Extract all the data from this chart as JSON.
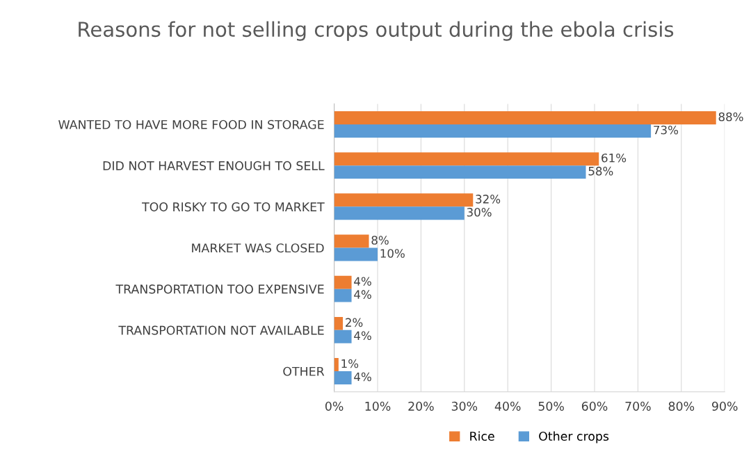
{
  "chart_data": {
    "type": "bar",
    "orientation": "horizontal",
    "title": "Reasons for not selling crops output during the ebola crisis",
    "categories": [
      "WANTED TO HAVE MORE FOOD IN STORAGE",
      "DID NOT HARVEST ENOUGH TO SELL",
      "TOO RISKY TO GO TO MARKET",
      "MARKET WAS CLOSED",
      "TRANSPORTATION TOO EXPENSIVE",
      "TRANSPORTATION NOT AVAILABLE",
      "OTHER"
    ],
    "series": [
      {
        "name": "Rice",
        "color": "#ed7d31",
        "values": [
          88,
          61,
          32,
          8,
          4,
          2,
          1
        ],
        "value_labels": [
          "88%",
          "61%",
          "32%",
          "8%",
          "4%",
          "2%",
          "1%"
        ]
      },
      {
        "name": "Other crops",
        "color": "#5b9bd5",
        "values": [
          73,
          58,
          30,
          10,
          4,
          4,
          4
        ],
        "value_labels": [
          "73%",
          "58%",
          "30%",
          "10%",
          "4%",
          "4%",
          "4%"
        ]
      }
    ],
    "xlim": [
      0,
      90
    ],
    "xticks": [
      {
        "value": 0,
        "label": "0%"
      },
      {
        "value": 10,
        "label": "10%"
      },
      {
        "value": 20,
        "label": "20%"
      },
      {
        "value": 30,
        "label": "30%"
      },
      {
        "value": 40,
        "label": "40%"
      },
      {
        "value": 50,
        "label": "50%"
      },
      {
        "value": 60,
        "label": "60%"
      },
      {
        "value": 70,
        "label": "70%"
      },
      {
        "value": 80,
        "label": "80%"
      },
      {
        "value": 90,
        "label": "90%"
      }
    ],
    "grid": "x",
    "legend": "bottom"
  }
}
